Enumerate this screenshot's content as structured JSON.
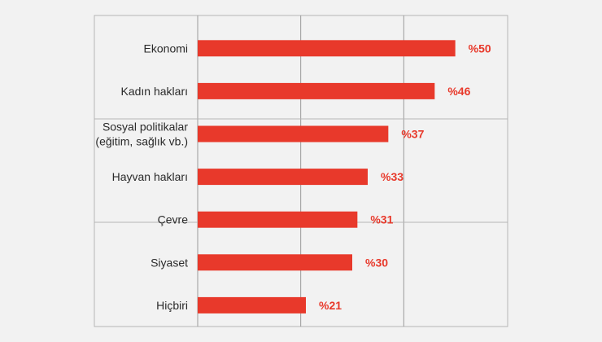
{
  "header": {
    "clipped_text": ""
  },
  "chart_data": {
    "type": "bar",
    "orientation": "horizontal",
    "title": "",
    "xlabel": "",
    "ylabel": "",
    "categories": [
      "Ekonomi",
      "Kadın hakları",
      "Sosyal politikalar\n(eğitim, sağlık vb.)",
      "Hayvan hakları",
      "Çevre",
      "Siyaset",
      "Hiçbiri"
    ],
    "values": [
      50,
      46,
      37,
      33,
      31,
      30,
      21
    ],
    "value_labels": [
      "%50",
      "%46",
      "%37",
      "%33",
      "%31",
      "%30",
      "%21"
    ],
    "xlim": [
      0,
      60
    ],
    "bar_color": "#e8392b",
    "label_color": "#e8392b",
    "grid": true
  }
}
